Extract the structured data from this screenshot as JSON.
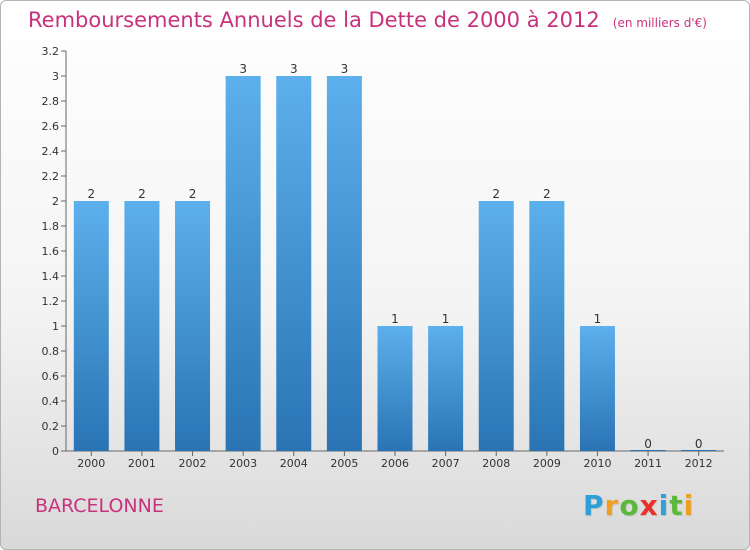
{
  "header": {
    "title": "Remboursements Annuels de la Dette de 2000 à 2012",
    "unit": "(en milliers d'€)"
  },
  "commune": "BARCELONNE",
  "logo": {
    "letters": [
      "P",
      "r",
      "o",
      "x",
      "i",
      "t",
      "i"
    ],
    "colors": [
      "#2f9fd8",
      "#f0a020",
      "#5cb83c",
      "#e8302c",
      "#2f9fd8",
      "#5cb83c",
      "#f0a020"
    ]
  },
  "colors": {
    "bar_top": "#5cb0ec",
    "bar_bottom": "#2a74b4",
    "title": "#c8327d"
  },
  "chart_data": {
    "type": "bar",
    "title": "Remboursements Annuels de la Dette de 2000 à 2012",
    "categories": [
      "2000",
      "2001",
      "2002",
      "2003",
      "2004",
      "2005",
      "2006",
      "2007",
      "2008",
      "2009",
      "2010",
      "2011",
      "2012"
    ],
    "values": [
      2,
      2,
      2,
      3,
      3,
      3,
      1,
      1,
      2,
      2,
      1,
      0,
      0
    ],
    "ylim": [
      0,
      3.2
    ],
    "yticks": [
      "0",
      "0.2",
      "0.4",
      "0.6",
      "0.8",
      "1",
      "1.2",
      "1.4",
      "1.6",
      "1.8",
      "2",
      "2.2",
      "2.4",
      "2.6",
      "2.8",
      "3",
      "3.2"
    ],
    "grid": false
  }
}
